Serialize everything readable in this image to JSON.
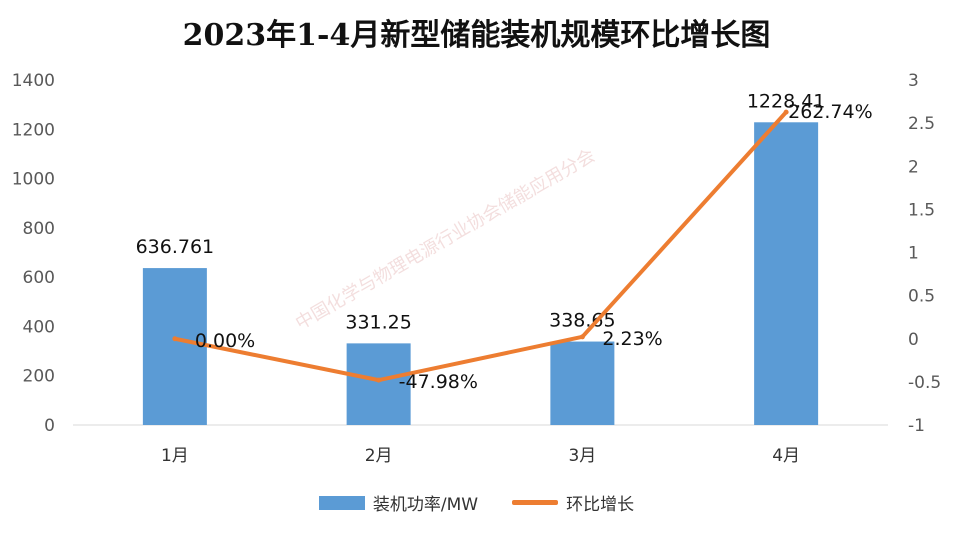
{
  "chart_data": {
    "type": "bar",
    "title": "2023年1-4月新型储能装机规模环比增长图",
    "categories": [
      "1月",
      "2月",
      "3月",
      "4月"
    ],
    "series": [
      {
        "name": "装机功率/MW",
        "type": "bar",
        "axis": "left",
        "values": [
          636.761,
          331.25,
          338.65,
          1228.41
        ],
        "labels": [
          "636.761",
          "331.25",
          "338.65",
          "1228.41"
        ],
        "color": "#5b9bd5"
      },
      {
        "name": "环比增长",
        "type": "line",
        "axis": "right",
        "values": [
          0.0,
          -0.4798,
          0.0223,
          2.6274
        ],
        "labels": [
          "0.00%",
          "-47.98%",
          "2.23%",
          "262.74%"
        ],
        "color": "#ed7d31"
      }
    ],
    "y_left": {
      "ylim": [
        0,
        1400
      ],
      "ticks": [
        0,
        200,
        400,
        600,
        800,
        1000,
        1200,
        1400
      ]
    },
    "y_right": {
      "ylim": [
        -1,
        3
      ],
      "ticks": [
        "3",
        "2.5",
        "2",
        "1.5",
        "1",
        "0.5",
        "0",
        "-0.5",
        "-1"
      ]
    },
    "grid": false,
    "legend": "bottom",
    "watermark": "中国化学与物理电源行业协会储能应用分会"
  }
}
